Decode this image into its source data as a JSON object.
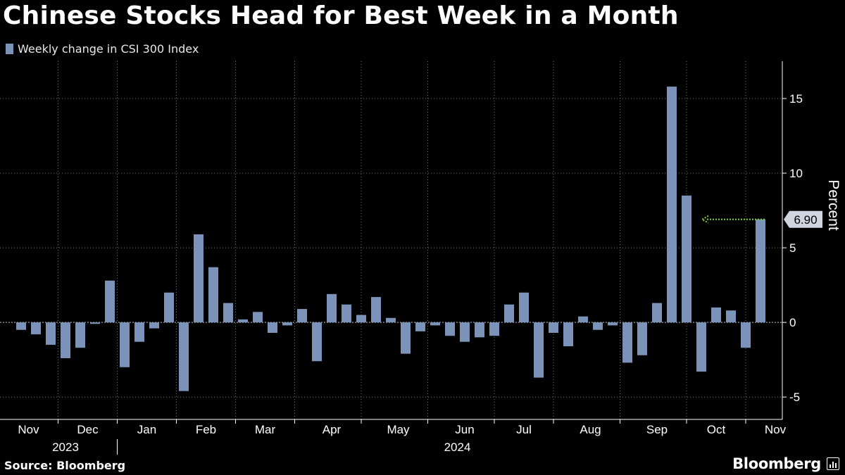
{
  "header": {
    "title": "Chinese Stocks Head for Best Week in a Month",
    "legend_label": "Weekly change in CSI 300 Index"
  },
  "footer": {
    "source": "Source: Bloomberg",
    "brand": "Bloomberg"
  },
  "colors": {
    "background": "#000000",
    "bar": "#7b93b8",
    "grid": "#777777",
    "annotation_arrow": "#7fd43f"
  },
  "chart_data": {
    "type": "bar",
    "title": "Chinese Stocks Head for Best Week in a Month",
    "series": [
      {
        "name": "Weekly change in CSI 300 Index",
        "values": [
          -0.5,
          -0.8,
          -1.5,
          -2.4,
          -1.7,
          -0.1,
          2.8,
          -3.0,
          -1.3,
          -0.4,
          2.0,
          -4.6,
          5.9,
          3.7,
          1.3,
          0.2,
          0.7,
          -0.7,
          -0.2,
          0.9,
          -2.6,
          1.9,
          1.2,
          0.5,
          1.7,
          0.3,
          -2.1,
          -0.6,
          -0.2,
          -0.9,
          -1.3,
          -1.0,
          -0.9,
          1.2,
          2.0,
          -3.7,
          -0.7,
          -1.6,
          0.4,
          -0.5,
          -0.2,
          -2.7,
          -2.2,
          1.3,
          15.8,
          8.5,
          -3.3,
          1.0,
          0.8,
          -1.7,
          6.9
        ]
      }
    ],
    "x_labels": [
      {
        "label": "Nov",
        "week": 0.5
      },
      {
        "label": "Dec",
        "week": 4.5
      },
      {
        "label": "Jan",
        "week": 8.5
      },
      {
        "label": "Feb",
        "week": 12.5
      },
      {
        "label": "Mar",
        "week": 16.5
      },
      {
        "label": "Apr",
        "week": 21
      },
      {
        "label": "May",
        "week": 25.5
      },
      {
        "label": "Jun",
        "week": 30
      },
      {
        "label": "Jul",
        "week": 34
      },
      {
        "label": "Aug",
        "week": 38.5
      },
      {
        "label": "Sep",
        "week": 43
      },
      {
        "label": "Oct",
        "week": 47
      },
      {
        "label": "Nov",
        "week": 51
      }
    ],
    "year_labels": [
      {
        "label": "2023",
        "week": 3
      },
      {
        "label": "2024",
        "week": 29.5
      }
    ],
    "month_boundaries": [
      2.5,
      6.5,
      10.5,
      14.5,
      18.5,
      23,
      27.5,
      32,
      36,
      40.5,
      45,
      49
    ],
    "year_divider_week": 6.5,
    "ylim": [
      -6.5,
      17.5
    ],
    "yticks": [
      -5,
      0,
      5,
      10,
      15
    ],
    "ylabel": "Percent",
    "xlabel": "",
    "annotation": {
      "label": "6.90",
      "value": 6.9
    }
  }
}
